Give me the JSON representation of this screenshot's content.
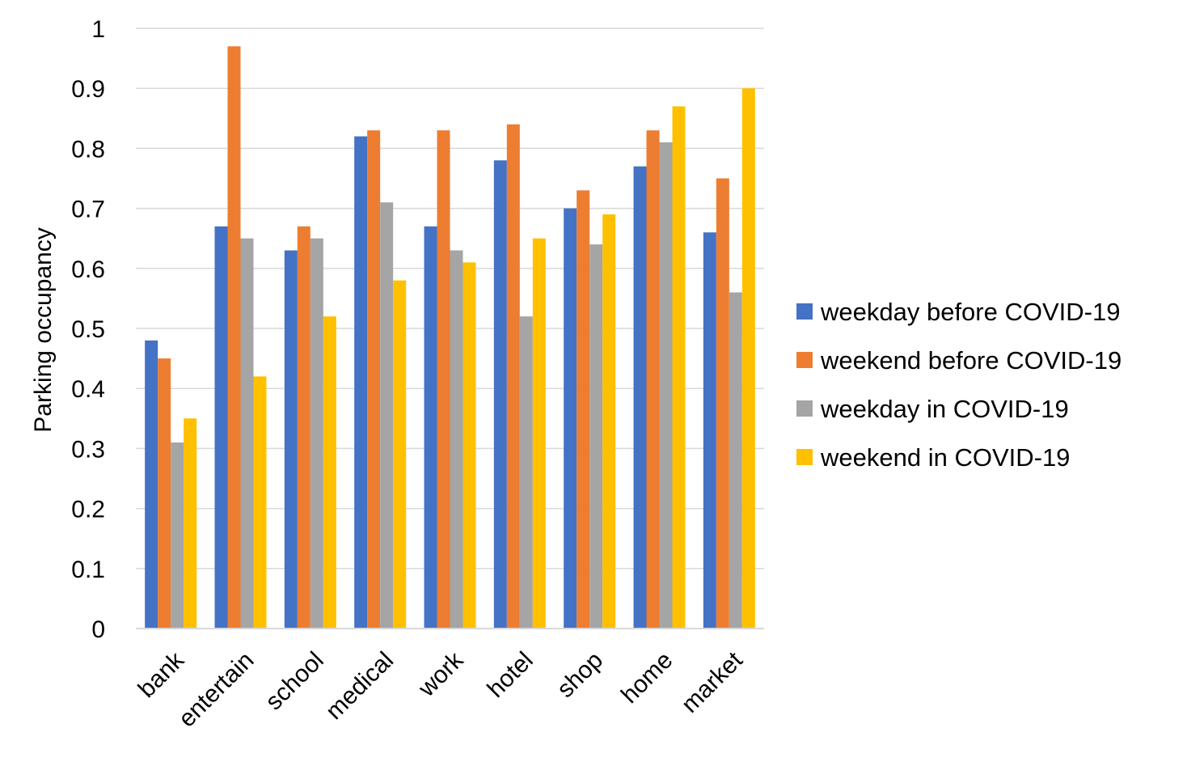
{
  "chart_data": {
    "type": "bar",
    "title": "",
    "xlabel": "",
    "ylabel": "Parking occupancy",
    "ylim": [
      0,
      1
    ],
    "yticks": [
      "0",
      "0.1",
      "0.2",
      "0.3",
      "0.4",
      "0.5",
      "0.6",
      "0.7",
      "0.8",
      "0.9",
      "1"
    ],
    "grid": true,
    "legend_position": "right",
    "categories": [
      "bank",
      "entertain",
      "school",
      "medical",
      "work",
      "hotel",
      "shop",
      "home",
      "market"
    ],
    "series": [
      {
        "name": "weekday before COVID-19",
        "color": "#4472C4",
        "values": [
          0.48,
          0.67,
          0.63,
          0.82,
          0.67,
          0.78,
          0.7,
          0.77,
          0.66
        ]
      },
      {
        "name": "weekend before COVID-19",
        "color": "#ED7D31",
        "values": [
          0.45,
          0.97,
          0.67,
          0.83,
          0.83,
          0.84,
          0.73,
          0.83,
          0.75
        ]
      },
      {
        "name": "weekday in COVID-19",
        "color": "#A5A5A5",
        "values": [
          0.31,
          0.65,
          0.65,
          0.71,
          0.63,
          0.52,
          0.64,
          0.81,
          0.56
        ]
      },
      {
        "name": "weekend in COVID-19",
        "color": "#FFC000",
        "values": [
          0.35,
          0.42,
          0.52,
          0.58,
          0.61,
          0.65,
          0.69,
          0.87,
          0.9
        ]
      }
    ]
  }
}
